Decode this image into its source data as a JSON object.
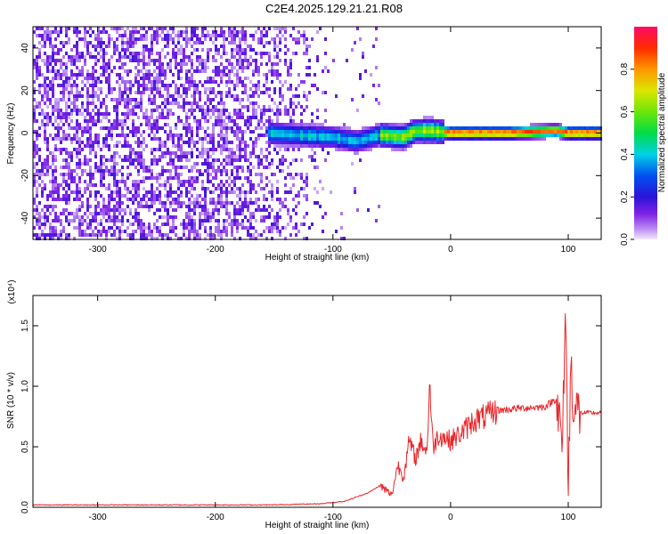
{
  "title": "C2E4.2025.129.21.21.R08",
  "chart_data": [
    {
      "type": "heatmap",
      "xlabel": "Height of straight line (km)",
      "ylabel": "Frequency (Hz)",
      "xlim": [
        -355,
        128
      ],
      "ylim": [
        -50,
        50
      ],
      "xticks": [
        -300,
        -200,
        -100,
        0,
        100
      ],
      "yticks": [
        -40,
        -20,
        0,
        20,
        40
      ],
      "colorbar": {
        "label": "Normalized spectral amplitude",
        "range": [
          0,
          1
        ],
        "ticks": [
          "0.0",
          "0.2",
          "0.4",
          "0.6",
          "0.8"
        ],
        "tick_values": [
          0,
          0.2,
          0.4,
          0.6,
          0.8
        ]
      },
      "ridge": [
        {
          "x": -155,
          "f": 0
        },
        {
          "x": -130,
          "f": -1
        },
        {
          "x": -100,
          "f": -2
        },
        {
          "x": -80,
          "f": -4
        },
        {
          "x": -60,
          "f": -1
        },
        {
          "x": -40,
          "f": -2
        },
        {
          "x": -30,
          "f": 1
        },
        {
          "x": -15,
          "f": 1
        },
        {
          "x": 0,
          "f": 0
        },
        {
          "x": 50,
          "f": 0
        },
        {
          "x": 90,
          "f": 1
        },
        {
          "x": 100,
          "f": 0
        },
        {
          "x": 128,
          "f": 0
        }
      ]
    },
    {
      "type": "line",
      "xlabel": "Height of straight line (km)",
      "ylabel": "SNR (10 * v/v)",
      "scale_label": "(x10⁴)",
      "xlim": [
        -355,
        128
      ],
      "ylim": [
        0,
        1.75
      ],
      "xticks": [
        -300,
        -200,
        -100,
        0,
        100
      ],
      "yticks": [
        0.0,
        0.5,
        1.0,
        1.5
      ],
      "ytick_labels": [
        "0.0",
        "0.5",
        "1.0",
        "1.5"
      ],
      "series": [
        {
          "color": "#e8262a",
          "x": [
            -355,
            -300,
            -200,
            -150,
            -110,
            -90,
            -70,
            -60,
            -50,
            -45,
            -40,
            -35,
            -30,
            -25,
            -20,
            -18,
            -15,
            -10,
            0,
            10,
            20,
            30,
            40,
            60,
            80,
            90,
            95,
            98,
            100,
            102,
            105,
            110,
            128
          ],
          "y": [
            0.02,
            0.02,
            0.02,
            0.02,
            0.03,
            0.05,
            0.12,
            0.18,
            0.1,
            0.35,
            0.25,
            0.55,
            0.4,
            0.55,
            0.45,
            1.05,
            0.5,
            0.6,
            0.55,
            0.62,
            0.72,
            0.75,
            0.8,
            0.82,
            0.83,
            0.9,
            0.5,
            1.7,
            0.05,
            1.2,
            0.8,
            0.78,
            0.78
          ]
        }
      ]
    }
  ]
}
